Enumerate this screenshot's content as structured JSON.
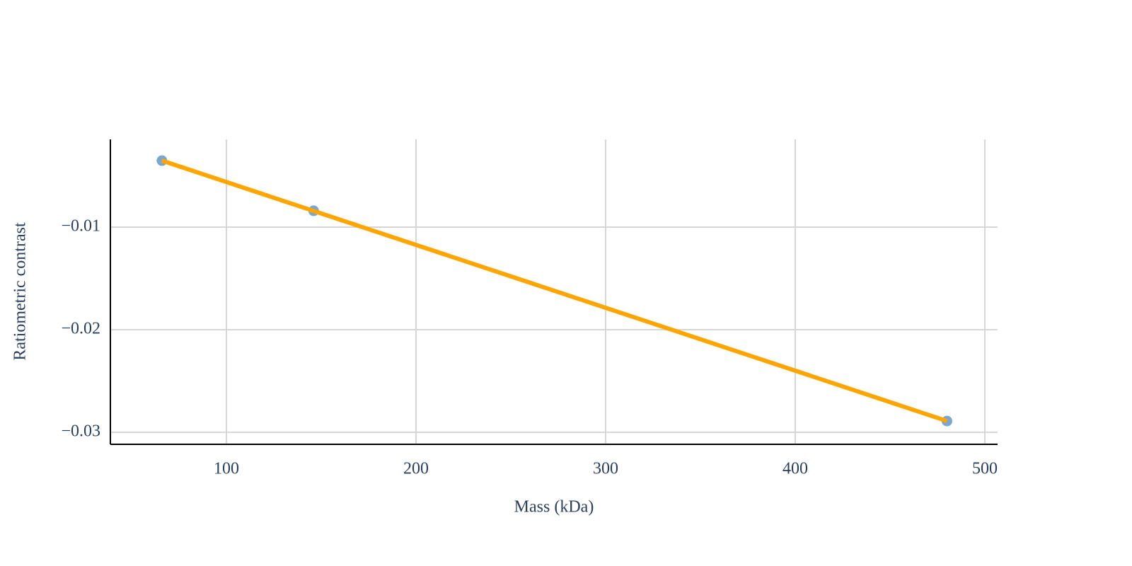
{
  "chart_data": {
    "type": "scatter",
    "x_label": "Mass (kDa)",
    "y_label": "Ratiometric contrast",
    "series": [
      {
        "mode": "markers",
        "color": "#7aa6d2",
        "x": [
          66,
          146,
          480
        ],
        "values": [
          -0.00352,
          -0.00841,
          -0.0289
        ]
      },
      {
        "mode": "line",
        "color": "#ffa500",
        "x": [
          66,
          480
        ],
        "values": [
          -0.00352,
          -0.0289
        ]
      }
    ],
    "xlim": [
      38.8,
      506.7
    ],
    "xticks": [
      100,
      200,
      300,
      400,
      500
    ],
    "ylim": [
      -0.03117,
      -0.00145
    ],
    "yticks": [
      {
        "value": -0.01,
        "label": "−0.01"
      },
      {
        "value": -0.02,
        "label": "−0.02"
      },
      {
        "value": -0.03,
        "label": "−0.03"
      }
    ],
    "grid": true
  }
}
